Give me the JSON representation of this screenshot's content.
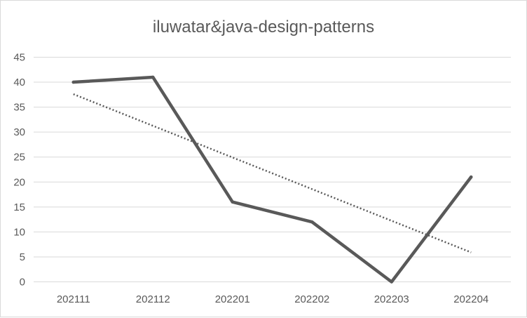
{
  "chart_data": {
    "type": "line",
    "title": "iluwatar&java-design-patterns",
    "xlabel": "",
    "ylabel": "",
    "categories": [
      "202111",
      "202112",
      "202201",
      "202202",
      "202203",
      "202204"
    ],
    "series": [
      {
        "values": [
          40,
          41,
          16,
          12,
          0,
          21
        ],
        "color": "#595959",
        "style": "solid"
      }
    ],
    "trendline": {
      "type": "linear",
      "start": 37.6,
      "end": 5.9,
      "color": "#595959",
      "style": "dotted"
    },
    "ylim": [
      0,
      45
    ],
    "yticks": [
      0,
      5,
      10,
      15,
      20,
      25,
      30,
      35,
      40,
      45
    ],
    "grid": true,
    "legend": "none"
  }
}
